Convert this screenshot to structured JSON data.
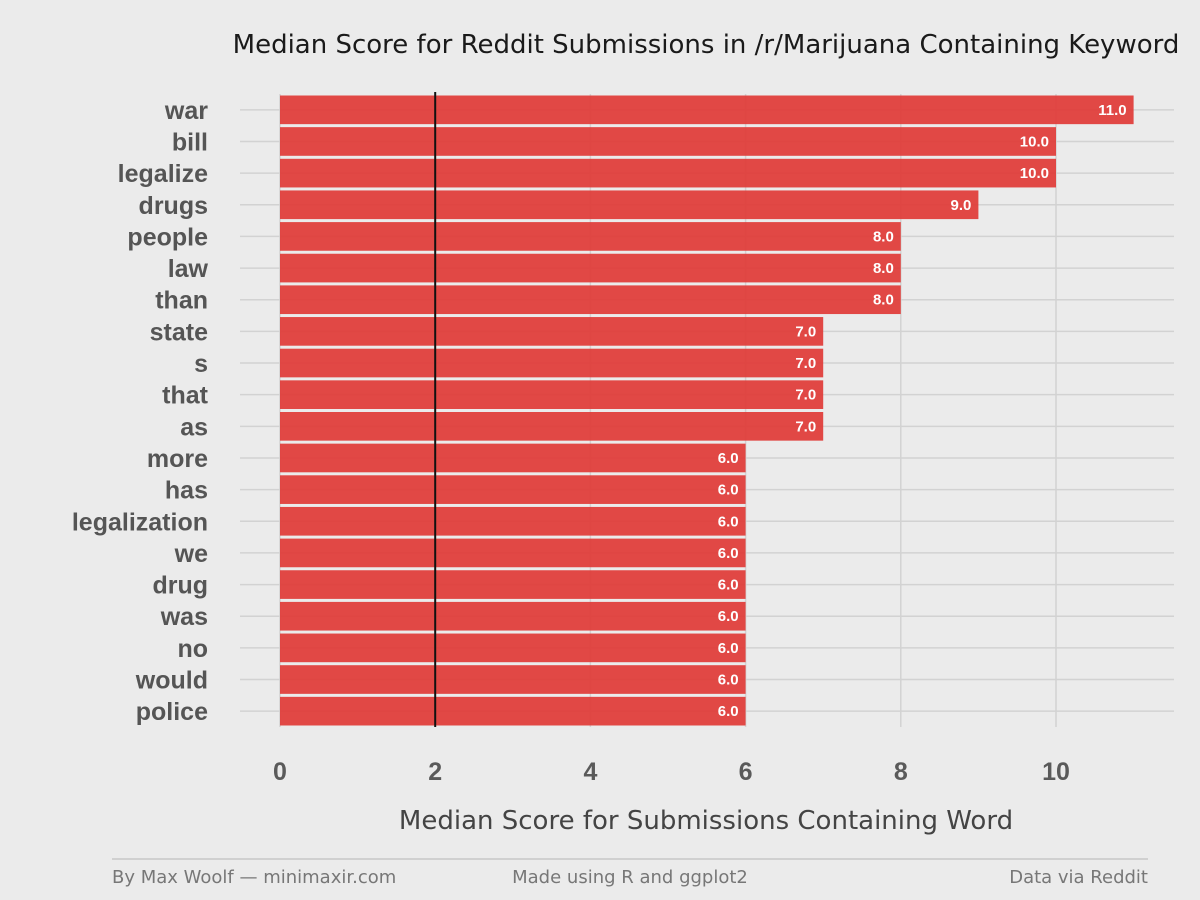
{
  "chart_data": {
    "type": "bar",
    "orientation": "horizontal",
    "title": "Median Score for Reddit Submissions in /r/Marijuana Containing Keyword",
    "xlabel": "Median Score for Submissions Containing Word",
    "ylabel": "",
    "categories": [
      "war",
      "bill",
      "legalize",
      "drugs",
      "people",
      "law",
      "than",
      "state",
      "s",
      "that",
      "as",
      "more",
      "has",
      "legalization",
      "we",
      "drug",
      "was",
      "no",
      "would",
      "police"
    ],
    "values": [
      11,
      10,
      10,
      9,
      8,
      8,
      8,
      7,
      7,
      7,
      7,
      6,
      6,
      6,
      6,
      6,
      6,
      6,
      6,
      6
    ],
    "value_labels": [
      "11.0",
      "10.0",
      "10.0",
      "9.0",
      "8.0",
      "8.0",
      "8.0",
      "7.0",
      "7.0",
      "7.0",
      "7.0",
      "6.0",
      "6.0",
      "6.0",
      "6.0",
      "6.0",
      "6.0",
      "6.0",
      "6.0",
      "6.0"
    ],
    "xticks": [
      0,
      2,
      4,
      6,
      8,
      10
    ],
    "xtick_labels": [
      "0",
      "2",
      "4",
      "6",
      "8",
      "10"
    ],
    "xlim": [
      0,
      11.5
    ],
    "reference_line": 2,
    "bar_color": "#e03a36",
    "background_color": "#ebebeb",
    "grid": true
  },
  "footer": {
    "left": "By Max Woolf — minimaxir.com",
    "center": "Made using R and ggplot2",
    "right": "Data via Reddit"
  }
}
